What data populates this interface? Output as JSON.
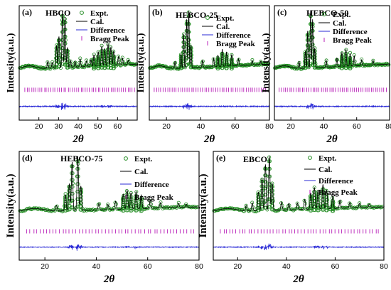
{
  "figure": {
    "y_axis_label": "Intensity(a.u.)",
    "x_axis_label": "2θ"
  },
  "legend_entries": [
    "Expt.",
    "Cal.",
    "Difference",
    "Bragg Peak"
  ],
  "colors": {
    "expt": "#1f8a1f",
    "cal": "#000000",
    "difference": "#2a2ad6",
    "bragg": "#b81fb8"
  },
  "chart_data": [
    {
      "type": "line",
      "panel_label": "(a)",
      "title": "HBCO",
      "xlim": [
        10,
        70
      ],
      "xticks": [
        20,
        30,
        40,
        50,
        60
      ],
      "series": [
        {
          "name": "Expt.",
          "style": "open-circles",
          "peaks": [
            [
              24.5,
              0.12
            ],
            [
              26.8,
              0.1
            ],
            [
              29.0,
              0.4
            ],
            [
              30.2,
              0.55
            ],
            [
              32.0,
              1.0
            ],
            [
              33.3,
              0.88
            ],
            [
              34.5,
              0.35
            ],
            [
              36.1,
              0.12
            ],
            [
              38.4,
              0.1
            ],
            [
              41.0,
              0.14
            ],
            [
              44.2,
              0.1
            ],
            [
              46.5,
              0.12
            ],
            [
              48.0,
              0.2
            ],
            [
              50.2,
              0.25
            ],
            [
              52.0,
              0.35
            ],
            [
              53.5,
              0.3
            ],
            [
              55.2,
              0.38
            ],
            [
              56.6,
              0.32
            ],
            [
              58.0,
              0.25
            ],
            [
              60.5,
              0.15
            ],
            [
              62.5,
              0.12
            ],
            [
              65.5,
              0.08
            ]
          ]
        },
        {
          "name": "Cal."
        },
        {
          "name": "Difference"
        },
        {
          "name": "Bragg Peak",
          "style": "ticks"
        }
      ]
    },
    {
      "type": "line",
      "panel_label": "(b)",
      "title": "HEBCO-25",
      "xlim": [
        10,
        80
      ],
      "xticks": [
        20,
        40,
        60,
        80
      ],
      "series": [
        {
          "name": "Expt.",
          "style": "open-circles",
          "peaks": [
            [
              25.0,
              0.12
            ],
            [
              28.5,
              0.25
            ],
            [
              30.0,
              0.6
            ],
            [
              31.8,
              0.85
            ],
            [
              33.0,
              1.0
            ],
            [
              34.3,
              0.4
            ],
            [
              41.0,
              0.12
            ],
            [
              47.5,
              0.15
            ],
            [
              50.0,
              0.2
            ],
            [
              52.5,
              0.3
            ],
            [
              55.0,
              0.25
            ],
            [
              58.0,
              0.2
            ],
            [
              62.0,
              0.12
            ],
            [
              70.0,
              0.08
            ],
            [
              75.0,
              0.06
            ]
          ]
        },
        {
          "name": "Cal."
        },
        {
          "name": "Difference"
        },
        {
          "name": "Bragg Peak",
          "style": "ticks"
        }
      ]
    },
    {
      "type": "line",
      "panel_label": "(c)",
      "title": "HEBCO-50",
      "xlim": [
        10,
        80
      ],
      "xticks": [
        20,
        40,
        60,
        80
      ],
      "series": [
        {
          "name": "Expt.",
          "style": "open-circles",
          "peaks": [
            [
              25.0,
              0.12
            ],
            [
              28.8,
              0.3
            ],
            [
              30.2,
              0.65
            ],
            [
              32.0,
              1.0
            ],
            [
              33.2,
              0.85
            ],
            [
              34.5,
              0.35
            ],
            [
              41.5,
              0.12
            ],
            [
              48.0,
              0.15
            ],
            [
              51.0,
              0.25
            ],
            [
              53.5,
              0.3
            ],
            [
              56.0,
              0.22
            ],
            [
              58.5,
              0.18
            ],
            [
              63.0,
              0.1
            ],
            [
              70.0,
              0.08
            ]
          ]
        },
        {
          "name": "Cal."
        },
        {
          "name": "Difference"
        },
        {
          "name": "Bragg Peak",
          "style": "ticks"
        }
      ]
    },
    {
      "type": "line",
      "panel_label": "(d)",
      "title": "HEBCO-75",
      "xlim": [
        10,
        80
      ],
      "xticks": [
        20,
        40,
        60,
        80
      ],
      "series": [
        {
          "name": "Expt.",
          "style": "open-circles",
          "peaks": [
            [
              24.5,
              0.1
            ],
            [
              28.0,
              0.3
            ],
            [
              29.5,
              0.5
            ],
            [
              30.6,
              0.9
            ],
            [
              32.8,
              1.0
            ],
            [
              34.0,
              0.45
            ],
            [
              41.0,
              0.12
            ],
            [
              44.5,
              0.1
            ],
            [
              47.5,
              0.15
            ],
            [
              50.5,
              0.28
            ],
            [
              52.0,
              0.35
            ],
            [
              53.5,
              0.3
            ],
            [
              55.5,
              0.32
            ],
            [
              57.5,
              0.25
            ],
            [
              61.0,
              0.15
            ],
            [
              65.0,
              0.1
            ],
            [
              72.0,
              0.08
            ],
            [
              75.0,
              0.06
            ]
          ]
        },
        {
          "name": "Cal."
        },
        {
          "name": "Difference"
        },
        {
          "name": "Bragg Peak",
          "style": "ticks"
        }
      ]
    },
    {
      "type": "line",
      "panel_label": "(e)",
      "title": "EBCO",
      "xlim": [
        10,
        80
      ],
      "xticks": [
        20,
        40,
        60,
        80
      ],
      "series": [
        {
          "name": "Expt.",
          "style": "open-circles",
          "peaks": [
            [
              23.5,
              0.1
            ],
            [
              26.0,
              0.15
            ],
            [
              28.5,
              0.35
            ],
            [
              30.0,
              0.6
            ],
            [
              31.4,
              0.85
            ],
            [
              33.0,
              1.0
            ],
            [
              34.2,
              0.5
            ],
            [
              38.0,
              0.15
            ],
            [
              41.0,
              0.12
            ],
            [
              44.5,
              0.12
            ],
            [
              47.5,
              0.18
            ],
            [
              50.0,
              0.3
            ],
            [
              51.5,
              0.4
            ],
            [
              53.0,
              0.35
            ],
            [
              55.0,
              0.45
            ],
            [
              56.5,
              0.35
            ],
            [
              59.0,
              0.22
            ],
            [
              62.0,
              0.15
            ],
            [
              66.0,
              0.1
            ],
            [
              70.0,
              0.08
            ],
            [
              74.0,
              0.06
            ]
          ]
        },
        {
          "name": "Cal."
        },
        {
          "name": "Difference"
        },
        {
          "name": "Bragg Peak",
          "style": "ticks"
        }
      ]
    }
  ]
}
